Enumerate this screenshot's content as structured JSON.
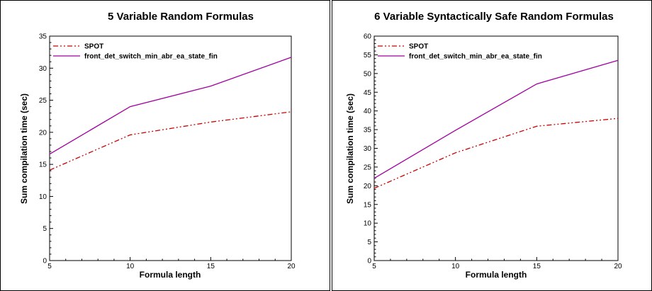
{
  "chart_data": [
    {
      "type": "line",
      "title": "5 Variable Random Formulas",
      "xlabel": "Formula length",
      "ylabel": "Sum compilation time (sec)",
      "x": [
        5,
        10,
        15,
        20
      ],
      "xlim": [
        5,
        20
      ],
      "ylim": [
        0,
        35
      ],
      "xticks": [
        5,
        10,
        15,
        20
      ],
      "yticks": [
        0,
        5,
        10,
        15,
        20,
        25,
        30,
        35
      ],
      "legend_position": "top-left",
      "grid": false,
      "series": [
        {
          "name": "SPOT",
          "values": [
            14.1,
            19.6,
            21.6,
            23.2
          ],
          "color": "#cc0000",
          "style": "dash-dot-dot"
        },
        {
          "name": "front_det_switch_min_abr_ea_state_fin",
          "values": [
            16.6,
            24.0,
            27.2,
            31.7
          ],
          "color": "#a000a0",
          "style": "solid"
        }
      ]
    },
    {
      "type": "line",
      "title": "6 Variable Syntactically Safe Random Formulas",
      "xlabel": "Formula length",
      "ylabel": "Sum compilation time (sec)",
      "x": [
        5,
        10,
        15,
        20
      ],
      "xlim": [
        5,
        20
      ],
      "ylim": [
        0,
        60
      ],
      "xticks": [
        5,
        10,
        15,
        20
      ],
      "yticks": [
        0,
        5,
        10,
        15,
        20,
        25,
        30,
        35,
        40,
        45,
        50,
        55,
        60
      ],
      "legend_position": "top-left",
      "grid": false,
      "series": [
        {
          "name": "SPOT",
          "values": [
            19.3,
            28.8,
            35.9,
            38.0
          ],
          "color": "#cc0000",
          "style": "dash-dot-dot"
        },
        {
          "name": "front_det_switch_min_abr_ea_state_fin",
          "values": [
            22.0,
            34.8,
            47.2,
            53.5
          ],
          "color": "#a000a0",
          "style": "solid"
        }
      ]
    }
  ]
}
